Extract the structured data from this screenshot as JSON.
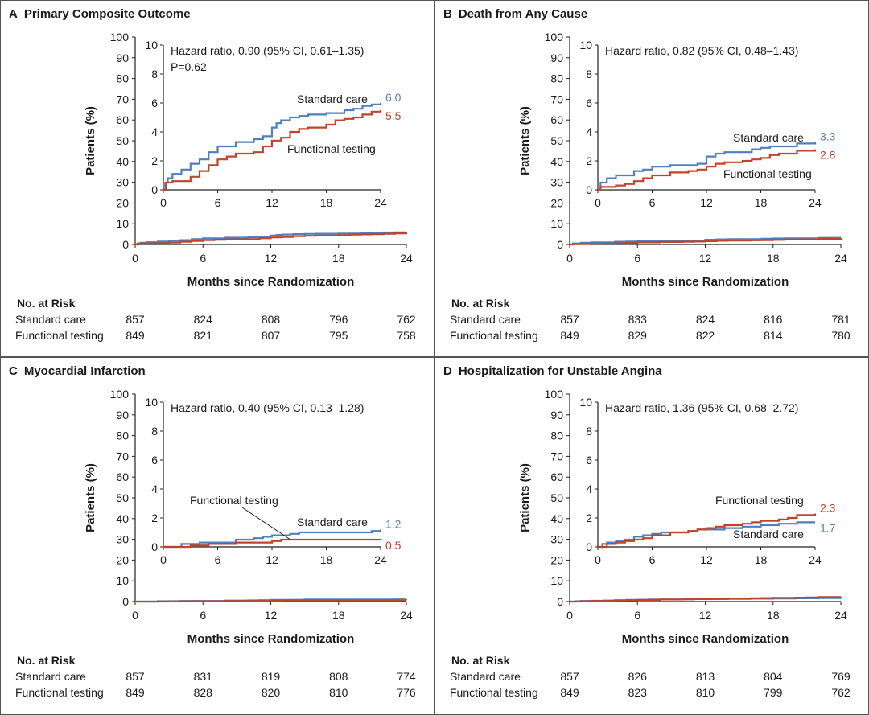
{
  "colors": {
    "standard": "#4f7fbe",
    "functional": "#c0442a"
  },
  "common": {
    "xlabel": "Months since Randomization",
    "ylabel": "Patients (%)",
    "risk_title": "No. at Risk",
    "row_standard": "Standard care",
    "row_functional": "Functional testing"
  },
  "chart_data": [
    {
      "type": "line",
      "letter": "A",
      "title": "Primary Composite Outcome",
      "hr_text": "Hazard ratio, 0.90 (95% CI, 0.61–1.35)",
      "p_text": "P=0.62",
      "main": {
        "xlim": [
          0,
          24
        ],
        "ylim": [
          0,
          100
        ],
        "xticks": [
          "0",
          "6",
          "12",
          "18",
          "24"
        ],
        "yticks": [
          "0",
          "10",
          "20",
          "30",
          "40",
          "50",
          "60",
          "70",
          "80",
          "90",
          "100"
        ]
      },
      "inset": {
        "xlim": [
          0,
          24
        ],
        "ylim": [
          0,
          10
        ],
        "xticks": [
          "0",
          "6",
          "12",
          "18",
          "24"
        ],
        "yticks": [
          "0",
          "2",
          "4",
          "6",
          "8",
          "10"
        ]
      },
      "series": [
        {
          "name": "Standard care",
          "end_label": "6.0",
          "color_key": "standard",
          "x": [
            0,
            0.2,
            0.5,
            1,
            2,
            3,
            4,
            5,
            6,
            8,
            10,
            11,
            12,
            12.5,
            13,
            14,
            15,
            16,
            18,
            20,
            21,
            22,
            23,
            24
          ],
          "y": [
            0,
            0.5,
            0.8,
            1.1,
            1.4,
            1.8,
            2.1,
            2.6,
            3.0,
            3.3,
            3.5,
            3.7,
            4.3,
            4.6,
            4.8,
            5.0,
            5.1,
            5.2,
            5.3,
            5.5,
            5.6,
            5.8,
            5.9,
            6.0
          ]
        },
        {
          "name": "Functional testing",
          "end_label": "5.5",
          "color_key": "functional",
          "x": [
            0,
            0.3,
            1,
            2,
            3,
            4,
            5,
            6,
            7,
            8,
            10,
            11,
            12,
            13,
            14,
            15,
            16,
            18,
            19,
            20,
            21,
            22,
            23,
            24
          ],
          "y": [
            0,
            0.5,
            0.6,
            0.6,
            0.9,
            1.3,
            1.7,
            2.1,
            2.3,
            2.5,
            2.6,
            3.0,
            3.4,
            3.6,
            4.0,
            4.2,
            4.3,
            4.5,
            4.8,
            4.9,
            5.0,
            5.2,
            5.4,
            5.5
          ]
        }
      ],
      "inset_labels": {
        "standard": "Standard care",
        "functional": "Functional testing"
      },
      "risk": {
        "standard": [
          "857",
          "824",
          "808",
          "796",
          "762"
        ],
        "functional": [
          "849",
          "821",
          "807",
          "795",
          "758"
        ]
      }
    },
    {
      "type": "line",
      "letter": "B",
      "title": "Death from Any Cause",
      "hr_text": "Hazard ratio, 0.82 (95% CI, 0.48–1.43)",
      "p_text": "",
      "main": {
        "xlim": [
          0,
          24
        ],
        "ylim": [
          0,
          100
        ],
        "xticks": [
          "0",
          "6",
          "12",
          "18",
          "24"
        ],
        "yticks": [
          "0",
          "10",
          "20",
          "30",
          "40",
          "50",
          "60",
          "70",
          "80",
          "90",
          "100"
        ]
      },
      "inset": {
        "xlim": [
          0,
          24
        ],
        "ylim": [
          0,
          10
        ],
        "xticks": [
          "0",
          "6",
          "12",
          "18",
          "24"
        ],
        "yticks": [
          "0",
          "2",
          "4",
          "6",
          "8",
          "10"
        ]
      },
      "series": [
        {
          "name": "Standard care",
          "end_label": "3.3",
          "color_key": "standard",
          "x": [
            0,
            0.3,
            1,
            2,
            4,
            5,
            6,
            8,
            10,
            11,
            12,
            13,
            14,
            16,
            17,
            18,
            19,
            20,
            22,
            24
          ],
          "y": [
            0,
            0.5,
            0.8,
            1.0,
            1.3,
            1.4,
            1.6,
            1.7,
            1.7,
            1.8,
            2.3,
            2.5,
            2.6,
            2.6,
            2.8,
            2.9,
            3.0,
            3.0,
            3.2,
            3.3
          ]
        },
        {
          "name": "Functional testing",
          "end_label": "2.8",
          "color_key": "functional",
          "x": [
            0,
            0.3,
            2,
            3,
            4,
            5,
            6,
            8,
            10,
            11,
            12,
            13,
            14,
            16,
            17,
            18,
            19,
            20,
            22,
            24
          ],
          "y": [
            0,
            0.2,
            0.3,
            0.4,
            0.6,
            0.8,
            1.0,
            1.2,
            1.3,
            1.4,
            1.6,
            1.8,
            1.9,
            2.0,
            2.1,
            2.2,
            2.4,
            2.5,
            2.7,
            2.8
          ]
        }
      ],
      "inset_labels": {
        "standard": "Standard care",
        "functional": "Functional testing"
      },
      "risk": {
        "standard": [
          "857",
          "833",
          "824",
          "816",
          "781"
        ],
        "functional": [
          "849",
          "829",
          "822",
          "814",
          "780"
        ]
      }
    },
    {
      "type": "line",
      "letter": "C",
      "title": "Myocardial Infarction",
      "hr_text": "Hazard ratio, 0.40 (95% CI, 0.13–1.28)",
      "p_text": "",
      "main": {
        "xlim": [
          0,
          24
        ],
        "ylim": [
          0,
          100
        ],
        "xticks": [
          "0",
          "6",
          "12",
          "18",
          "24"
        ],
        "yticks": [
          "0",
          "10",
          "20",
          "30",
          "40",
          "50",
          "60",
          "70",
          "80",
          "90",
          "100"
        ]
      },
      "inset": {
        "xlim": [
          0,
          24
        ],
        "ylim": [
          0,
          10
        ],
        "xticks": [
          "0",
          "6",
          "12",
          "18",
          "24"
        ],
        "yticks": [
          "0",
          "2",
          "4",
          "6",
          "8",
          "10"
        ]
      },
      "series": [
        {
          "name": "Standard care",
          "end_label": "1.2",
          "color_key": "standard",
          "x": [
            0,
            2,
            4,
            6,
            8,
            10,
            11,
            12,
            14,
            15,
            16,
            18,
            20,
            22,
            23,
            24
          ],
          "y": [
            0,
            0.2,
            0.3,
            0.3,
            0.5,
            0.6,
            0.7,
            0.8,
            0.9,
            1.0,
            1.0,
            1.0,
            1.0,
            1.0,
            1.1,
            1.2
          ]
        },
        {
          "name": "Functional testing",
          "end_label": "0.5",
          "color_key": "functional",
          "x": [
            0,
            3,
            5,
            7,
            8,
            11,
            12,
            13,
            14,
            24
          ],
          "y": [
            0,
            0.1,
            0.2,
            0.2,
            0.3,
            0.3,
            0.4,
            0.5,
            0.5,
            0.5
          ]
        }
      ],
      "inset_labels": {
        "standard": "Standard care",
        "functional": "Functional testing"
      },
      "risk": {
        "standard": [
          "857",
          "831",
          "819",
          "808",
          "774"
        ],
        "functional": [
          "849",
          "828",
          "820",
          "810",
          "776"
        ]
      }
    },
    {
      "type": "line",
      "letter": "D",
      "title": "Hospitalization for Unstable Angina",
      "hr_text": "Hazard ratio, 1.36 (95% CI, 0.68–2.72)",
      "p_text": "",
      "main": {
        "xlim": [
          0,
          24
        ],
        "ylim": [
          0,
          100
        ],
        "xticks": [
          "0",
          "6",
          "12",
          "18",
          "24"
        ],
        "yticks": [
          "0",
          "10",
          "20",
          "30",
          "40",
          "50",
          "60",
          "70",
          "80",
          "90",
          "100"
        ]
      },
      "inset": {
        "xlim": [
          0,
          24
        ],
        "ylim": [
          0,
          10
        ],
        "xticks": [
          "0",
          "6",
          "12",
          "18",
          "24"
        ],
        "yticks": [
          "0",
          "2",
          "4",
          "6",
          "8",
          "10"
        ]
      },
      "series": [
        {
          "name": "Standard care",
          "end_label": "1.7",
          "color_key": "standard",
          "x": [
            0,
            0.5,
            1,
            2,
            3,
            4,
            5,
            6,
            7,
            8,
            10,
            11,
            12,
            14,
            16,
            18,
            20,
            22,
            24
          ],
          "y": [
            0,
            0.2,
            0.3,
            0.4,
            0.5,
            0.7,
            0.8,
            0.9,
            1.0,
            1.0,
            1.1,
            1.2,
            1.2,
            1.3,
            1.4,
            1.5,
            1.6,
            1.7,
            1.7
          ]
        },
        {
          "name": "Functional testing",
          "end_label": "2.3",
          "color_key": "functional",
          "x": [
            0,
            1,
            2,
            3,
            4,
            5,
            6,
            7,
            8,
            10,
            11,
            12,
            13,
            14,
            16,
            17,
            18,
            20,
            21,
            22,
            24
          ],
          "y": [
            0,
            0.2,
            0.3,
            0.4,
            0.5,
            0.6,
            0.8,
            0.8,
            1.0,
            1.1,
            1.2,
            1.3,
            1.4,
            1.5,
            1.6,
            1.7,
            1.8,
            1.9,
            2.0,
            2.2,
            2.3
          ]
        }
      ],
      "inset_labels": {
        "standard": "Standard care",
        "functional": "Functional testing"
      },
      "risk": {
        "standard": [
          "857",
          "826",
          "813",
          "804",
          "769"
        ],
        "functional": [
          "849",
          "823",
          "810",
          "799",
          "762"
        ]
      }
    }
  ]
}
